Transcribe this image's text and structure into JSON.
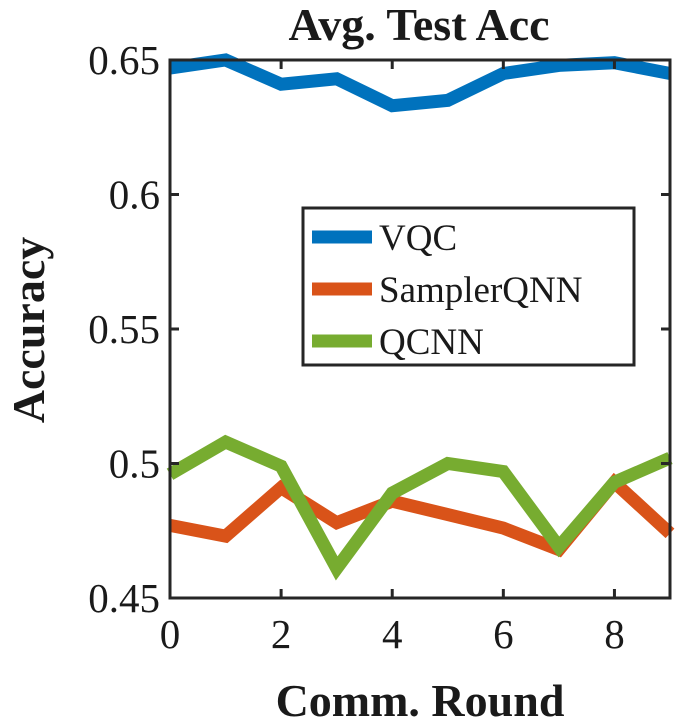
{
  "chart_data": {
    "type": "line",
    "title": "Avg. Test Acc",
    "xlabel": "Comm. Round",
    "ylabel": "Accuracy",
    "xlim": [
      0,
      9
    ],
    "ylim": [
      0.45,
      0.65
    ],
    "x_ticks": [
      0,
      2,
      4,
      6,
      8
    ],
    "x_tick_labels": [
      "0",
      "2",
      "4",
      "6",
      "8"
    ],
    "y_ticks": [
      0.45,
      0.5,
      0.55,
      0.6,
      0.65
    ],
    "y_tick_labels": [
      "0.45",
      "0.5",
      "0.55",
      "0.6",
      "0.65"
    ],
    "grid": false,
    "legend_position": "center-right",
    "x": [
      0,
      1,
      2,
      3,
      4,
      5,
      6,
      7,
      8,
      9
    ],
    "series": [
      {
        "name": "VQC",
        "color": "#0072BD",
        "values": [
          0.647,
          0.65,
          0.641,
          0.643,
          0.633,
          0.635,
          0.645,
          0.648,
          0.649,
          0.645
        ]
      },
      {
        "name": "SamplerQNN",
        "color": "#D95319",
        "values": [
          0.477,
          0.473,
          0.491,
          0.478,
          0.486,
          0.481,
          0.476,
          0.468,
          0.493,
          0.474
        ]
      },
      {
        "name": "QCNN",
        "color": "#77AC30",
        "values": [
          0.496,
          0.508,
          0.499,
          0.461,
          0.489,
          0.5,
          0.497,
          0.469,
          0.493,
          0.502
        ]
      }
    ]
  }
}
